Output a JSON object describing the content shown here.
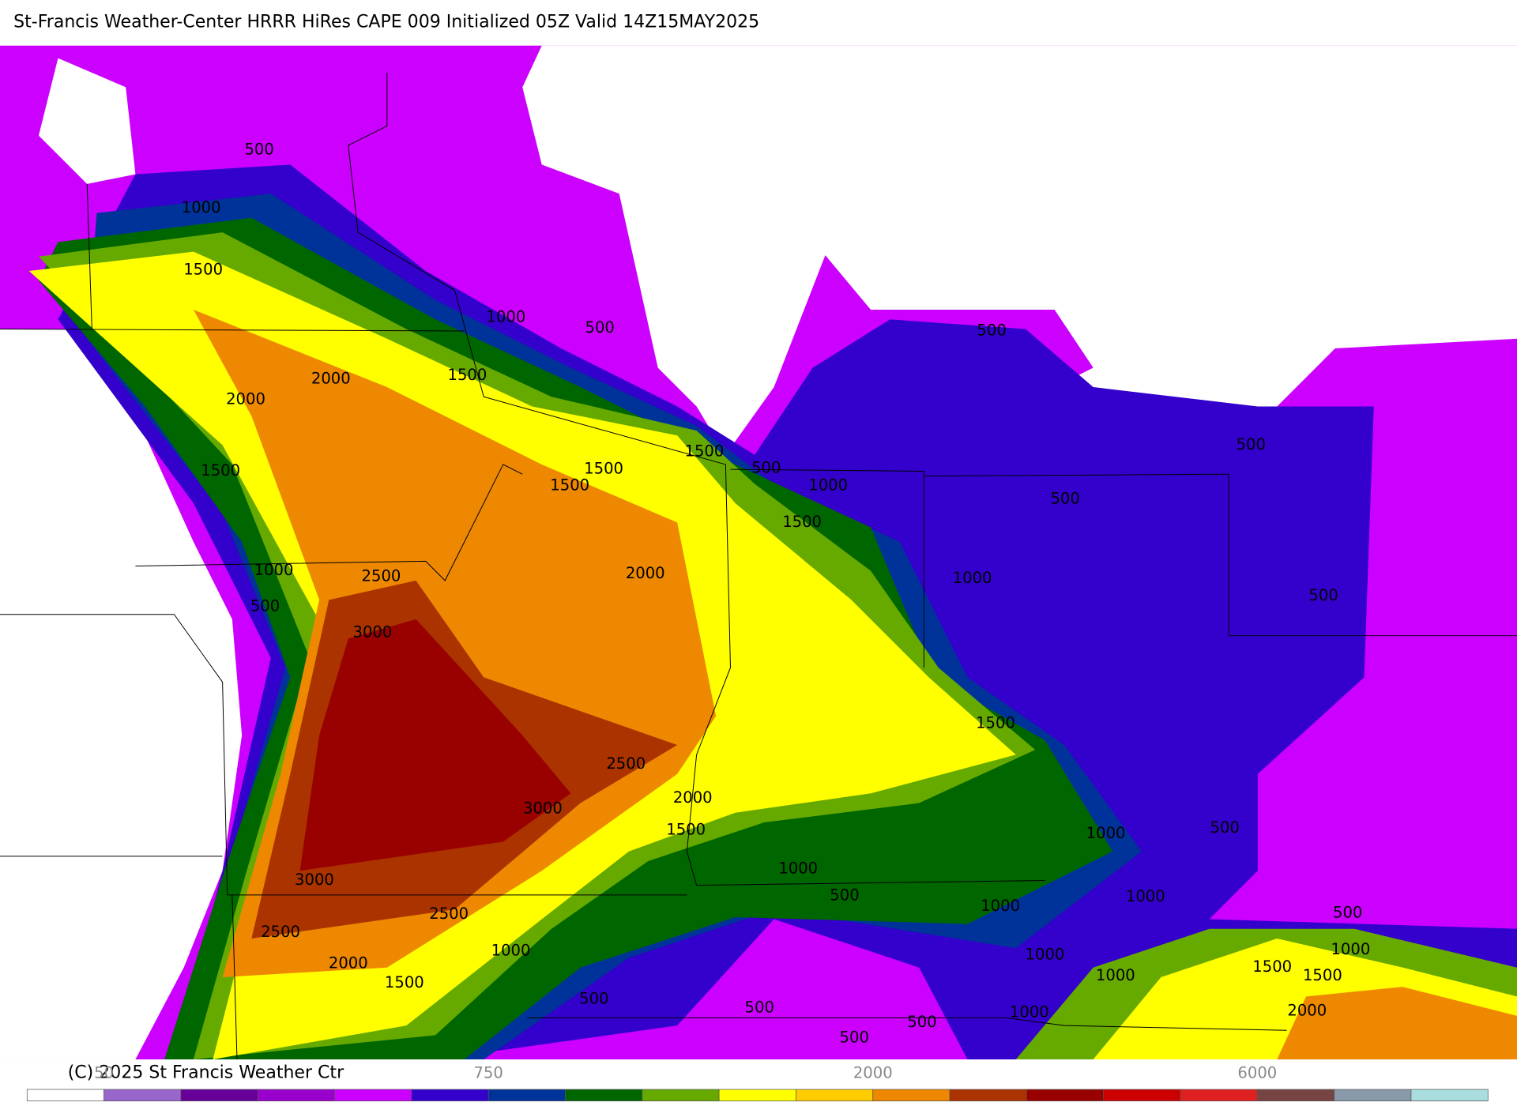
{
  "header": {
    "title": "St-Francis Weather-Center HRRR HiRes CAPE  009 Initialized  05Z Valid 14Z15MAY2025"
  },
  "footer": {
    "credit": "(C) 2025 St Francis Weather Ctr"
  },
  "colorbar": {
    "colors": [
      "#ffffff",
      "#9966cc",
      "#660099",
      "#9900cc",
      "#cc00ff",
      "#3300cc",
      "#003399",
      "#006600",
      "#66aa00",
      "#ffff00",
      "#ffcc00",
      "#ee8800",
      "#aa3300",
      "#990000",
      "#cc0000",
      "#e02020",
      "#774444",
      "#8899aa",
      "#aadddd"
    ],
    "labels": [
      "50",
      "750",
      "2000",
      "6000"
    ]
  },
  "contour_labels": [
    "500",
    "1000",
    "1500",
    "1000",
    "500",
    "2000",
    "1500",
    "2000",
    "1500",
    "500",
    "1500",
    "1500",
    "1000",
    "1500",
    "1500",
    "500",
    "500",
    "500",
    "2000",
    "1000",
    "1000",
    "2500",
    "500",
    "500",
    "3000",
    "1500",
    "2500",
    "2000",
    "3000",
    "1500",
    "1000",
    "500",
    "1000",
    "3000",
    "500",
    "1000",
    "1000",
    "2500",
    "500",
    "2500",
    "1000",
    "1000",
    "1000",
    "2000",
    "1500",
    "1500",
    "1000",
    "1500",
    "500",
    "2000",
    "500",
    "1000",
    "500",
    "500"
  ]
}
